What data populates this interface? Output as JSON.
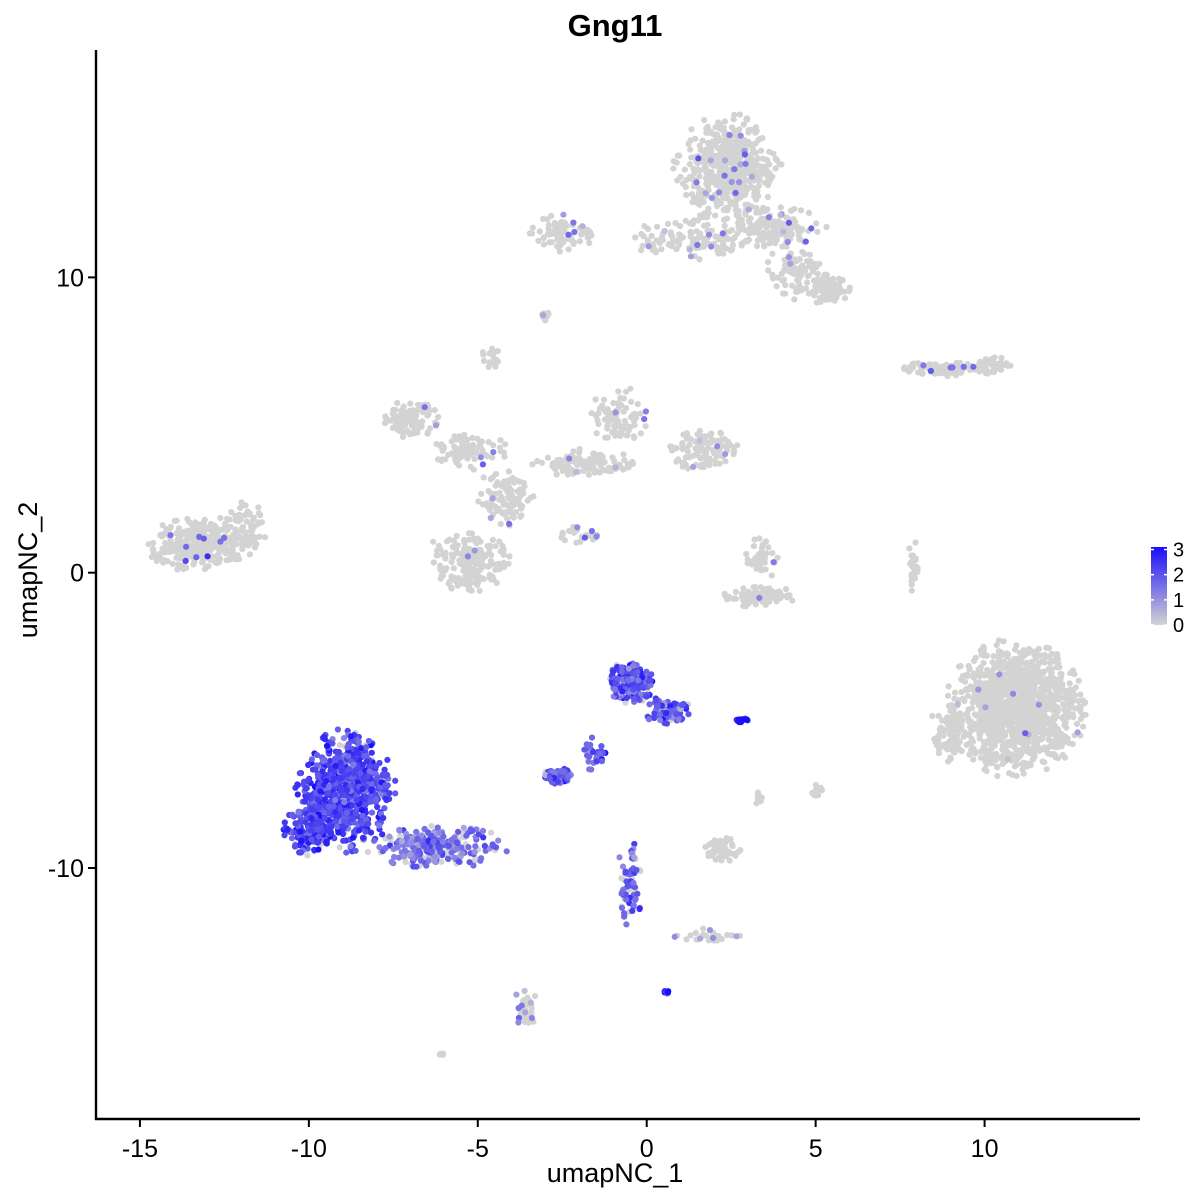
{
  "chart_data": {
    "type": "scatter",
    "title": "Gng11",
    "xlabel": "umapNC_1",
    "ylabel": "umapNC_2",
    "xlim": [
      -16.3,
      14.6
    ],
    "ylim": [
      -18.5,
      17.7
    ],
    "xticks": [
      -15,
      -10,
      -5,
      0,
      5,
      10
    ],
    "xtick_labels": [
      "-15",
      "-10",
      "-5",
      "0",
      "5",
      "10"
    ],
    "yticks": [
      -10,
      0,
      10
    ],
    "ytick_labels": [
      "-10",
      "0",
      "10"
    ],
    "grid": false,
    "legend": {
      "placement": "right",
      "type": "colorbar",
      "min": 0,
      "max": 3.1,
      "breaks": [
        0,
        1,
        2,
        3
      ],
      "labels": [
        "0",
        "1",
        "2",
        "3"
      ],
      "low_color": "#d3d3d3",
      "high_color": "#1a0dfa"
    },
    "clusters": [
      {
        "id": "top-right-mass",
        "cx": 2.4,
        "cy": 13.7,
        "rx": 1.3,
        "ry": 1.5,
        "n": 520,
        "expr_prob": 0.03,
        "expr_level": 1.2
      },
      {
        "id": "top-right-arm",
        "cx": 3.9,
        "cy": 11.7,
        "rx": 1.2,
        "ry": 0.6,
        "n": 150,
        "expr_prob": 0.05,
        "expr_level": 1.2
      },
      {
        "id": "top-right-lobe",
        "cx": 5.4,
        "cy": 9.6,
        "rx": 0.5,
        "ry": 0.5,
        "n": 90,
        "expr_prob": 0.02,
        "expr_level": 1.0
      },
      {
        "id": "top-right-stem",
        "cx": 4.4,
        "cy": 10.2,
        "rx": 0.7,
        "ry": 0.8,
        "n": 90,
        "expr_prob": 0.04,
        "expr_level": 1.0
      },
      {
        "id": "top-bridge",
        "cx": 1.3,
        "cy": 11.3,
        "rx": 1.4,
        "ry": 0.6,
        "n": 120,
        "expr_prob": 0.03,
        "expr_level": 1.0
      },
      {
        "id": "top-left-arm",
        "cx": -2.5,
        "cy": 11.5,
        "rx": 0.9,
        "ry": 0.5,
        "n": 80,
        "expr_prob": 0.06,
        "expr_level": 1.3
      },
      {
        "id": "small-top-dot",
        "cx": -3.0,
        "cy": 8.7,
        "rx": 0.18,
        "ry": 0.15,
        "n": 12,
        "expr_prob": 0.05,
        "expr_level": 1.0
      },
      {
        "id": "small-mid-dot",
        "cx": -4.6,
        "cy": 7.3,
        "rx": 0.25,
        "ry": 0.3,
        "n": 18,
        "expr_prob": 0.05,
        "expr_level": 1.0
      },
      {
        "id": "right-band",
        "cx": 8.8,
        "cy": 6.9,
        "rx": 1.3,
        "ry": 0.2,
        "n": 90,
        "expr_prob": 0.05,
        "expr_level": 1.4
      },
      {
        "id": "right-band-tail",
        "cx": 10.2,
        "cy": 7.0,
        "rx": 0.5,
        "ry": 0.3,
        "n": 40,
        "expr_prob": 0.05,
        "expr_level": 1.2
      },
      {
        "id": "left-island",
        "cx": -13.2,
        "cy": 1.0,
        "rx": 1.4,
        "ry": 0.8,
        "n": 330,
        "expr_prob": 0.02,
        "expr_level": 1.5
      },
      {
        "id": "left-island-tail",
        "cx": -11.8,
        "cy": 1.7,
        "rx": 0.6,
        "ry": 0.6,
        "n": 40,
        "expr_prob": 0.03,
        "expr_level": 1.5
      },
      {
        "id": "mid-upper-left",
        "cx": -7.0,
        "cy": 5.2,
        "rx": 0.7,
        "ry": 0.5,
        "n": 110,
        "expr_prob": 0.02,
        "expr_level": 1.0
      },
      {
        "id": "mid-upper-left-arm",
        "cx": -5.3,
        "cy": 4.1,
        "rx": 1.0,
        "ry": 0.5,
        "n": 90,
        "expr_prob": 0.02,
        "expr_level": 1.0
      },
      {
        "id": "mid-center",
        "cx": -4.2,
        "cy": 2.5,
        "rx": 0.7,
        "ry": 0.9,
        "n": 110,
        "expr_prob": 0.02,
        "expr_level": 1.0
      },
      {
        "id": "mid-lower-left",
        "cx": -5.3,
        "cy": 0.4,
        "rx": 1.0,
        "ry": 0.9,
        "n": 190,
        "expr_prob": 0.02,
        "expr_level": 1.2
      },
      {
        "id": "mid-upper-right-arm",
        "cx": -1.8,
        "cy": 3.7,
        "rx": 1.3,
        "ry": 0.4,
        "n": 110,
        "expr_prob": 0.03,
        "expr_level": 1.0
      },
      {
        "id": "mid-upper-right",
        "cx": -0.8,
        "cy": 5.3,
        "rx": 0.7,
        "ry": 0.8,
        "n": 90,
        "expr_prob": 0.02,
        "expr_level": 1.0
      },
      {
        "id": "mid-right-blob",
        "cx": 1.7,
        "cy": 4.2,
        "rx": 0.9,
        "ry": 0.6,
        "n": 110,
        "expr_prob": 0.03,
        "expr_level": 1.1
      },
      {
        "id": "mid-streak",
        "cx": -2.0,
        "cy": 1.3,
        "rx": 0.7,
        "ry": 0.3,
        "n": 25,
        "expr_prob": 0.1,
        "expr_level": 1.2
      },
      {
        "id": "arc-blob",
        "cx": 3.3,
        "cy": -0.8,
        "rx": 0.9,
        "ry": 0.3,
        "n": 90,
        "expr_prob": 0.02,
        "expr_level": 1.0
      },
      {
        "id": "arc-upper",
        "cx": 3.4,
        "cy": 0.5,
        "rx": 0.4,
        "ry": 0.6,
        "n": 40,
        "expr_prob": 0.02,
        "expr_level": 1.0
      },
      {
        "id": "right-sliver",
        "cx": 7.9,
        "cy": 0.2,
        "rx": 0.15,
        "ry": 0.8,
        "n": 35,
        "expr_prob": 0.03,
        "expr_level": 1.2
      },
      {
        "id": "big-right-blob",
        "cx": 10.9,
        "cy": -4.6,
        "rx": 1.7,
        "ry": 1.9,
        "n": 1250,
        "expr_prob": 0.012,
        "expr_level": 1.0
      },
      {
        "id": "big-right-flank",
        "cx": 8.9,
        "cy": -5.5,
        "rx": 0.5,
        "ry": 0.8,
        "n": 90,
        "expr_prob": 0.01,
        "expr_level": 1.0
      },
      {
        "id": "purple-cluster-main",
        "cx": -8.9,
        "cy": -7.4,
        "rx": 1.2,
        "ry": 1.7,
        "n": 700,
        "expr_prob": 0.93,
        "expr_level": 2.2
      },
      {
        "id": "purple-cluster-left",
        "cx": -10.0,
        "cy": -8.7,
        "rx": 0.6,
        "ry": 0.7,
        "n": 160,
        "expr_prob": 0.93,
        "expr_level": 2.2
      },
      {
        "id": "purple-cluster-tail",
        "cx": -6.2,
        "cy": -9.3,
        "rx": 1.7,
        "ry": 0.6,
        "n": 260,
        "expr_prob": 0.7,
        "expr_level": 1.5
      },
      {
        "id": "center-purple-top",
        "cx": -0.5,
        "cy": -3.7,
        "rx": 0.6,
        "ry": 0.6,
        "n": 200,
        "expr_prob": 0.85,
        "expr_level": 2.0
      },
      {
        "id": "center-purple-right",
        "cx": 0.6,
        "cy": -4.7,
        "rx": 0.6,
        "ry": 0.4,
        "n": 100,
        "expr_prob": 0.85,
        "expr_level": 1.9
      },
      {
        "id": "center-purple-stem",
        "cx": -1.6,
        "cy": -6.2,
        "rx": 0.4,
        "ry": 0.5,
        "n": 30,
        "expr_prob": 0.85,
        "expr_level": 1.8
      },
      {
        "id": "center-purple-small",
        "cx": -2.6,
        "cy": -6.9,
        "rx": 0.4,
        "ry": 0.25,
        "n": 70,
        "expr_prob": 0.85,
        "expr_level": 1.8
      },
      {
        "id": "blue-dot-cluster",
        "cx": 2.8,
        "cy": -5.0,
        "rx": 0.15,
        "ry": 0.08,
        "n": 18,
        "expr_prob": 1.0,
        "expr_level": 2.9
      },
      {
        "id": "small-grey-mid",
        "cx": 3.3,
        "cy": -7.6,
        "rx": 0.1,
        "ry": 0.2,
        "n": 10,
        "expr_prob": 0.0,
        "expr_level": 0
      },
      {
        "id": "small-grey-right",
        "cx": 5.0,
        "cy": -7.4,
        "rx": 0.15,
        "ry": 0.2,
        "n": 12,
        "expr_prob": 0.0,
        "expr_level": 0
      },
      {
        "id": "lower-purple-stream",
        "cx": -0.5,
        "cy": -10.5,
        "rx": 0.3,
        "ry": 1.2,
        "n": 70,
        "expr_prob": 0.8,
        "expr_level": 1.8
      },
      {
        "id": "lower-grey-blob",
        "cx": 2.2,
        "cy": -9.4,
        "rx": 0.5,
        "ry": 0.35,
        "n": 60,
        "expr_prob": 0.0,
        "expr_level": 0
      },
      {
        "id": "lower-right-arc",
        "cx": 1.8,
        "cy": -12.3,
        "rx": 0.9,
        "ry": 0.2,
        "n": 30,
        "expr_prob": 0.4,
        "expr_level": 1.2
      },
      {
        "id": "lower-blue-dot",
        "cx": 0.6,
        "cy": -14.2,
        "rx": 0.07,
        "ry": 0.05,
        "n": 8,
        "expr_prob": 1.0,
        "expr_level": 3.0
      },
      {
        "id": "bottom-grey",
        "cx": -3.6,
        "cy": -14.8,
        "rx": 0.3,
        "ry": 0.6,
        "n": 40,
        "expr_prob": 0.3,
        "expr_level": 1.0
      },
      {
        "id": "bottom-small",
        "cx": -6.1,
        "cy": -16.3,
        "rx": 0.08,
        "ry": 0.06,
        "n": 4,
        "expr_prob": 0.0,
        "expr_level": 0
      }
    ]
  }
}
